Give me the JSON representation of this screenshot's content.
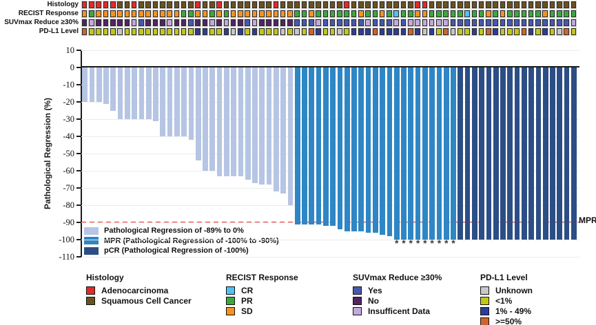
{
  "palette": {
    "bar_light": "#b6c5e4",
    "bar_mpr": "#2e86c5",
    "bar_pcr": "#2c4e85",
    "reference_line": "#ea2a24",
    "axis": "#1a1a1a",
    "grid": "#ececec",
    "asterisk": "#3d3d3d"
  },
  "track_codes": {
    "histology": {
      "A": {
        "label": "Adenocarcinoma",
        "color": "#e32a28"
      },
      "S": {
        "label": "Squamous Cell Cancer",
        "color": "#6a5220"
      }
    },
    "recist": {
      "CR": {
        "label": "CR",
        "color": "#4dc3f2"
      },
      "PR": {
        "label": "PR",
        "color": "#3aa93c"
      },
      "SD": {
        "label": "SD",
        "color": "#f49322"
      }
    },
    "suvmax": {
      "Y": {
        "label": "Yes",
        "color": "#4758ad"
      },
      "N": {
        "label": "No",
        "color": "#522461"
      },
      "I": {
        "label": "Insufficent Data",
        "color": "#c2aadb"
      }
    },
    "pdl1": {
      "U": {
        "label": "Unknown",
        "color": "#c8c8c8"
      },
      "L": {
        "label": "<1%",
        "color": "#c1c817"
      },
      "M": {
        "label": "1% - 49%",
        "color": "#2d3c9a"
      },
      "H": {
        "label": ">=50%",
        "color": "#d0632e"
      }
    }
  },
  "annotation_tracks": [
    {
      "key": "histology",
      "label": "Histology",
      "values": [
        "A",
        "A",
        "A",
        "A",
        "A",
        "S",
        "S",
        "A",
        "S",
        "S",
        "S",
        "S",
        "S",
        "S",
        "S",
        "S",
        "A",
        "S",
        "S",
        "A",
        "S",
        "S",
        "S",
        "S",
        "S",
        "S",
        "S",
        "A",
        "S",
        "S",
        "S",
        "S",
        "S",
        "S",
        "S",
        "S",
        "S",
        "A",
        "S",
        "S",
        "S",
        "S",
        "S",
        "S",
        "S",
        "S",
        "S",
        "A",
        "A",
        "S",
        "S",
        "S",
        "S",
        "S",
        "S",
        "S",
        "S",
        "S",
        "S",
        "S",
        "S",
        "S",
        "S",
        "S",
        "S",
        "S",
        "S",
        "S",
        "S",
        "S"
      ]
    },
    {
      "key": "recist",
      "label": "RECIST Response",
      "values": [
        "SD",
        "PR",
        "SD",
        "SD",
        "SD",
        "SD",
        "SD",
        "SD",
        "SD",
        "SD",
        "SD",
        "SD",
        "SD",
        "SD",
        "PR",
        "PR",
        "SD",
        "SD",
        "PR",
        "SD",
        "PR",
        "SD",
        "SD",
        "SD",
        "SD",
        "SD",
        "SD",
        "SD",
        "SD",
        "SD",
        "PR",
        "PR",
        "SD",
        "PR",
        "PR",
        "PR",
        "PR",
        "PR",
        "PR",
        "SD",
        "PR",
        "PR",
        "SD",
        "PR",
        "CR",
        "PR",
        "PR",
        "SD",
        "SD",
        "PR",
        "PR",
        "PR",
        "PR",
        "PR",
        "CR",
        "PR",
        "PR",
        "SD",
        "PR",
        "SD",
        "PR",
        "PR",
        "PR",
        "PR",
        "PR",
        "SD",
        "PR",
        "PR",
        "PR",
        "PR"
      ]
    },
    {
      "key": "suvmax",
      "label": "SUVmax Reduce ≥30%",
      "values": [
        "N",
        "I",
        "N",
        "N",
        "N",
        "N",
        "N",
        "I",
        "Y",
        "N",
        "N",
        "N",
        "I",
        "N",
        "N",
        "Y",
        "N",
        "N",
        "I",
        "N",
        "I",
        "N",
        "N",
        "Y",
        "I",
        "N",
        "N",
        "N",
        "N",
        "N",
        "Y",
        "Y",
        "Y",
        "I",
        "Y",
        "Y",
        "Y",
        "Y",
        "Y",
        "Y",
        "I",
        "Y",
        "Y",
        "Y",
        "I",
        "Y",
        "I",
        "I",
        "I",
        "I",
        "I",
        "I",
        "Y",
        "Y",
        "Y",
        "Y",
        "Y",
        "Y",
        "Y",
        "Y",
        "Y",
        "Y",
        "Y",
        "Y",
        "Y",
        "Y",
        "Y",
        "Y",
        "Y",
        "I"
      ]
    },
    {
      "key": "pdl1",
      "label": "PD-L1 Level",
      "values": [
        "H",
        "L",
        "L",
        "L",
        "L",
        "U",
        "L",
        "L",
        "L",
        "L",
        "L",
        "L",
        "L",
        "L",
        "L",
        "L",
        "M",
        "M",
        "L",
        "L",
        "M",
        "U",
        "M",
        "L",
        "M",
        "L",
        "L",
        "L",
        "U",
        "L",
        "U",
        "L",
        "H",
        "M",
        "L",
        "L",
        "U",
        "L",
        "M",
        "M",
        "M",
        "H",
        "M",
        "M",
        "M",
        "M",
        "H",
        "M",
        "U",
        "M",
        "L",
        "H",
        "U",
        "L",
        "L",
        "M",
        "L",
        "H",
        "M",
        "L",
        "L",
        "L",
        "H",
        "M",
        "L",
        "M",
        "L",
        "U",
        "H",
        "L"
      ]
    }
  ],
  "chart_data": {
    "type": "bar",
    "title": "",
    "xlabel": "",
    "ylabel": "Pathological Regression (%)",
    "ylim": [
      -110,
      10
    ],
    "yticks": [
      10,
      0,
      -10,
      -20,
      -30,
      -40,
      -50,
      -60,
      -70,
      -80,
      -90,
      -100,
      -110
    ],
    "grid": "horizontal-light",
    "n_patients": 70,
    "values": [
      -20,
      -20,
      -20,
      -21,
      -25,
      -30,
      -30,
      -30,
      -30,
      -30,
      -31,
      -40,
      -40,
      -40,
      -40,
      -42,
      -54,
      -60,
      -60,
      -63,
      -63,
      -63,
      -63,
      -65,
      -67,
      -68,
      -68,
      -72,
      -73,
      -80,
      -91,
      -91,
      -91,
      -91,
      -92,
      -92,
      -94,
      -95,
      -95,
      -95,
      -96,
      -96,
      -97,
      -98,
      -100,
      -100,
      -100,
      -100,
      -100,
      -100,
      -100,
      -100,
      -100,
      -100,
      -100,
      -100,
      -100,
      -100,
      -100,
      -100,
      -100,
      -100,
      -100,
      -100,
      -100,
      -100,
      -100,
      -100,
      -100,
      -100
    ],
    "groups": [
      "light",
      "light",
      "light",
      "light",
      "light",
      "light",
      "light",
      "light",
      "light",
      "light",
      "light",
      "light",
      "light",
      "light",
      "light",
      "light",
      "light",
      "light",
      "light",
      "light",
      "light",
      "light",
      "light",
      "light",
      "light",
      "light",
      "light",
      "light",
      "light",
      "light",
      "mpr",
      "mpr",
      "mpr",
      "mpr",
      "mpr",
      "mpr",
      "mpr",
      "mpr",
      "mpr",
      "mpr",
      "mpr",
      "mpr",
      "mpr",
      "mpr",
      "mpr",
      "mpr",
      "mpr",
      "mpr",
      "mpr",
      "mpr",
      "mpr",
      "mpr",
      "mpr",
      "pcr",
      "pcr",
      "pcr",
      "pcr",
      "pcr",
      "pcr",
      "pcr",
      "pcr",
      "pcr",
      "pcr",
      "pcr",
      "pcr",
      "pcr",
      "pcr",
      "pcr",
      "pcr",
      "pcr"
    ],
    "mpr_reference_line": {
      "value": -90,
      "label": "MPR"
    },
    "asterisk_symbol": "*",
    "asterisk_columns": [
      45,
      46,
      47,
      48,
      49,
      50,
      51,
      52,
      53
    ]
  },
  "plot_legend": [
    {
      "label": "Pathological Regression of -89% to 0%",
      "color": "#b6c5e4"
    },
    {
      "label": "MPR (Pathological Regression of -100% to -90%)",
      "color": "#2e86c5"
    },
    {
      "label": "pCR (Pathological Regression of -100%)",
      "color": "#2c4e85"
    }
  ],
  "bottom_legends": [
    {
      "title": "Histology",
      "items": [
        {
          "label": "Adenocarcinoma",
          "color": "#e32a28"
        },
        {
          "label": "Squamous Cell Cancer",
          "color": "#6a5220"
        }
      ]
    },
    {
      "title": "RECIST Response",
      "items": [
        {
          "label": "CR",
          "color": "#4dc3f2"
        },
        {
          "label": "PR",
          "color": "#3aa93c"
        },
        {
          "label": "SD",
          "color": "#f49322"
        }
      ]
    },
    {
      "title": "SUVmax Reduce ≥30%",
      "items": [
        {
          "label": "Yes",
          "color": "#4758ad"
        },
        {
          "label": "No",
          "color": "#522461"
        },
        {
          "label": "Insufficent Data",
          "color": "#c2aadb"
        }
      ]
    },
    {
      "title": "PD-L1 Level",
      "items": [
        {
          "label": "Unknown",
          "color": "#c8c8c8"
        },
        {
          "label": "<1%",
          "color": "#c1c817"
        },
        {
          "label": "1% - 49%",
          "color": "#2d3c9a"
        },
        {
          "label": ">=50%",
          "color": "#d0632e"
        }
      ]
    }
  ]
}
